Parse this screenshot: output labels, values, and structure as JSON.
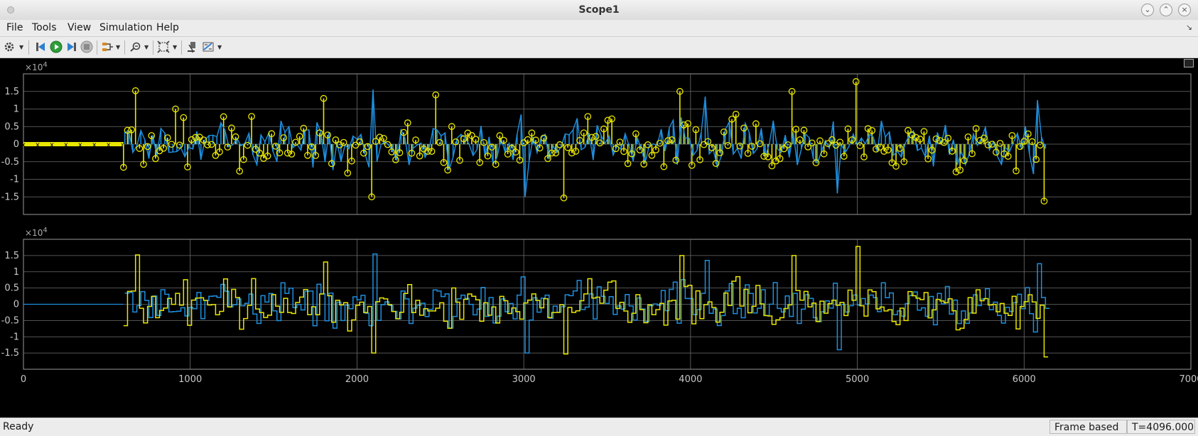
{
  "window": {
    "title": "Scope1"
  },
  "menu": {
    "file": "File",
    "tools": "Tools",
    "view": "View",
    "simulation": "Simulation",
    "help": "Help"
  },
  "toolbar": {
    "icons": [
      "gear-icon",
      "step-back-icon",
      "run-icon",
      "step-forward-icon",
      "stop-icon",
      "signal-select-icon",
      "zoom-icon",
      "fit-to-view-icon",
      "highlight-block-icon",
      "cursor-measure-icon"
    ]
  },
  "axes": {
    "exponent_base": "×10",
    "exponent_power": "4",
    "y_ticks": [
      "1.5",
      "1",
      "0.5",
      "0",
      "-0.5",
      "-1",
      "-1.5"
    ],
    "x_ticks": [
      "0",
      "1000",
      "2000",
      "3000",
      "4000",
      "5000",
      "6000",
      "7000"
    ]
  },
  "colors": {
    "series1": "#e9e600",
    "series2": "#1e8fe0",
    "background": "#000000",
    "grid": "#6e6e6e"
  },
  "chart_data": [
    {
      "type": "line",
      "plot_style": "stem",
      "title": "",
      "xlabel": "",
      "ylabel": "",
      "xlim": [
        0,
        7000
      ],
      "ylim": [
        -20000,
        20000
      ],
      "y_exponent": "×10^4",
      "grid": true,
      "series": [
        {
          "color": "#e9e600",
          "marker": "circle",
          "description_zero_until": 600,
          "x": [
            680,
            920,
            1800,
            2080,
            2470,
            3240,
            3940,
            4620,
            5000,
            6120
          ],
          "values": [
            15200,
            10000,
            13000,
            -15000,
            14000,
            -15300,
            15000,
            15000,
            17800,
            -16200
          ]
        },
        {
          "color": "#1e8fe0",
          "x": [
            2090,
            3020,
            4090,
            4880,
            6080
          ],
          "values": [
            15500,
            -15000,
            13500,
            -14000,
            12500
          ]
        }
      ],
      "data_extent_x": [
        0,
        6130
      ],
      "signal_start_x": 600
    },
    {
      "type": "line",
      "plot_style": "stairs",
      "title": "",
      "xlabel": "",
      "ylabel": "",
      "xlim": [
        0,
        7000
      ],
      "ylim": [
        -20000,
        20000
      ],
      "y_exponent": "×10^4",
      "grid": true,
      "series": [
        {
          "color": "#e9e600",
          "x": [
            680,
            1800,
            2080,
            3240,
            3940,
            4620,
            5000,
            6120
          ],
          "values": [
            15200,
            13000,
            -15000,
            -15300,
            15000,
            15000,
            17800,
            -16200
          ]
        },
        {
          "color": "#1e8fe0",
          "x": [
            2090,
            3020,
            4090,
            4880,
            6080
          ],
          "values": [
            15500,
            -15000,
            13500,
            -14000,
            12500
          ]
        }
      ],
      "data_extent_x": [
        0,
        6130
      ],
      "signal_start_x": 600
    }
  ],
  "status": {
    "ready": "Ready",
    "mode": "Frame based",
    "time": "T=4096.000"
  }
}
